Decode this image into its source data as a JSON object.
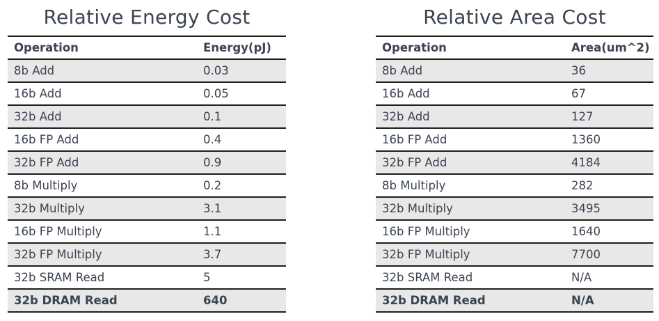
{
  "energy_table": {
    "title": "Relative Energy Cost",
    "headers": [
      "Operation",
      "Energy(pJ)"
    ],
    "rows": [
      [
        "8b Add",
        "0.03"
      ],
      [
        "16b Add",
        "0.05"
      ],
      [
        "32b Add",
        "0.1"
      ],
      [
        "16b FP Add",
        "0.4"
      ],
      [
        "32b FP Add",
        "0.9"
      ],
      [
        "8b Multiply",
        "0.2"
      ],
      [
        "32b Multiply",
        "3.1"
      ],
      [
        "16b FP Multiply",
        "1.1"
      ],
      [
        "32b FP Multiply",
        "3.7"
      ],
      [
        "32b SRAM Read",
        "5"
      ],
      [
        "32b DRAM Read",
        "640"
      ]
    ]
  },
  "area_table": {
    "title": "Relative Area Cost",
    "headers": [
      "Operation",
      "Area(um^2)"
    ],
    "rows": [
      [
        "8b Add",
        "36"
      ],
      [
        "16b Add",
        "67"
      ],
      [
        "32b Add",
        "127"
      ],
      [
        "16b FP Add",
        "1360"
      ],
      [
        "32b FP Add",
        "4184"
      ],
      [
        "8b Multiply",
        "282"
      ],
      [
        "32b Multiply",
        "3495"
      ],
      [
        "16b FP Multiply",
        "1640"
      ],
      [
        "32b FP Multiply",
        "7700"
      ],
      [
        "32b SRAM Read",
        "N/A"
      ],
      [
        "32b DRAM Read",
        "N/A"
      ]
    ]
  },
  "colors": {
    "text": "#3b4452",
    "stripe": "#e8e8e8",
    "rule": "#1e1e1e"
  }
}
